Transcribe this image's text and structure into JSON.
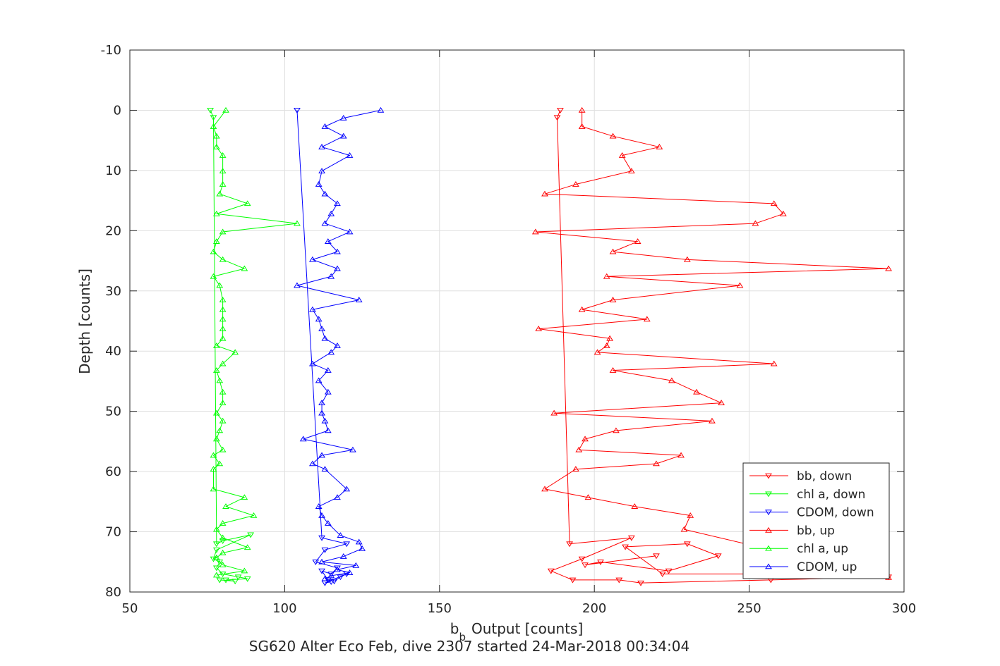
{
  "chart_data": {
    "type": "line",
    "title": "",
    "xlabel": "Output [counts]",
    "xlabel_prefix": "b",
    "xlabel_subscript": "b",
    "ylabel": "Depth [counts]",
    "caption": "SG620 Alter Eco Feb, dive 2307 started 24-Mar-2018 00:34:04",
    "xlim": [
      50,
      300
    ],
    "ylim": [
      -10,
      80
    ],
    "y_reversed": true,
    "grid": true,
    "x_ticks": [
      "50",
      "100",
      "150",
      "200",
      "250",
      "300"
    ],
    "y_ticks": [
      "-10",
      "0",
      "10",
      "20",
      "30",
      "40",
      "50",
      "60",
      "70",
      "80"
    ],
    "legend_position": "bottom-right",
    "series": [
      {
        "name": "bb, down",
        "color": "#ff0000",
        "marker": "triangle-down",
        "points": [
          [
            189,
            0
          ],
          [
            188,
            1.2
          ],
          [
            192,
            72
          ],
          [
            212,
            71
          ],
          [
            196,
            74.5
          ],
          [
            186,
            76.5
          ],
          [
            193,
            78
          ],
          [
            208,
            78
          ],
          [
            215,
            78.5
          ],
          [
            257,
            78
          ],
          [
            295,
            77.5
          ],
          [
            255,
            77
          ],
          [
            222,
            77
          ],
          [
            210,
            72.5
          ],
          [
            230,
            72
          ],
          [
            240,
            74
          ],
          [
            224,
            76.5
          ],
          [
            202,
            75
          ],
          [
            197,
            75.5
          ],
          [
            220,
            74
          ]
        ]
      },
      {
        "name": "chl a, down",
        "color": "#00ff00",
        "marker": "triangle-down",
        "points": [
          [
            76,
            0
          ],
          [
            77,
            1.2
          ],
          [
            78,
            72
          ],
          [
            80,
            71.5
          ],
          [
            89,
            70.5
          ],
          [
            78,
            73
          ],
          [
            77,
            74.5
          ],
          [
            79,
            75
          ],
          [
            78,
            76
          ],
          [
            80,
            77
          ],
          [
            85,
            77.5
          ],
          [
            88,
            77.8
          ],
          [
            81,
            78
          ],
          [
            84,
            78.2
          ],
          [
            79,
            78
          ]
        ]
      },
      {
        "name": "CDOM, down",
        "color": "#0000ff",
        "marker": "triangle-down",
        "points": [
          [
            104,
            0
          ],
          [
            112,
            71
          ],
          [
            120,
            72
          ],
          [
            113,
            73
          ],
          [
            110,
            75
          ],
          [
            117,
            76
          ],
          [
            115,
            77
          ],
          [
            112,
            76.5
          ],
          [
            114,
            78
          ],
          [
            116,
            78.2
          ],
          [
            118,
            77.5
          ],
          [
            120,
            77
          ],
          [
            113,
            78.5
          ],
          [
            115,
            78.3
          ]
        ]
      },
      {
        "name": "bb, up",
        "color": "#ff0000",
        "marker": "triangle-up",
        "points": [
          [
            196,
            0
          ],
          [
            196,
            2.7
          ],
          [
            206,
            4.3
          ],
          [
            221,
            6.1
          ],
          [
            209,
            7.5
          ],
          [
            212,
            10.1
          ],
          [
            194,
            12.3
          ],
          [
            184,
            13.9
          ],
          [
            258,
            15.5
          ],
          [
            261,
            17.2
          ],
          [
            252,
            18.8
          ],
          [
            181,
            20.2
          ],
          [
            214,
            21.8
          ],
          [
            206,
            23.5
          ],
          [
            230,
            24.8
          ],
          [
            295,
            26.3
          ],
          [
            204,
            27.6
          ],
          [
            247,
            29.1
          ],
          [
            206,
            31.5
          ],
          [
            196,
            33.1
          ],
          [
            217,
            34.7
          ],
          [
            182,
            36.3
          ],
          [
            205,
            37.9
          ],
          [
            204,
            39.1
          ],
          [
            201,
            40.2
          ],
          [
            258,
            42.1
          ],
          [
            206,
            43.2
          ],
          [
            225,
            44.9
          ],
          [
            233,
            46.8
          ],
          [
            241,
            48.6
          ],
          [
            187,
            50.3
          ],
          [
            238,
            51.6
          ],
          [
            207,
            53.2
          ],
          [
            197,
            54.6
          ],
          [
            195,
            56.4
          ],
          [
            228,
            57.3
          ],
          [
            220,
            58.7
          ],
          [
            194,
            59.6
          ],
          [
            184,
            62.9
          ],
          [
            198,
            64.3
          ],
          [
            213,
            65.8
          ],
          [
            231,
            67.3
          ],
          [
            229,
            69.6
          ],
          [
            295,
            77.6
          ]
        ]
      },
      {
        "name": "chl a, up",
        "color": "#00ff00",
        "marker": "triangle-up",
        "points": [
          [
            81,
            0
          ],
          [
            77,
            2.7
          ],
          [
            78,
            4.3
          ],
          [
            78,
            6.1
          ],
          [
            80,
            7.5
          ],
          [
            80,
            10.1
          ],
          [
            80,
            12.3
          ],
          [
            79,
            13.9
          ],
          [
            88,
            15.5
          ],
          [
            78,
            17.2
          ],
          [
            104,
            18.8
          ],
          [
            80,
            20.2
          ],
          [
            78,
            21.8
          ],
          [
            77,
            23.5
          ],
          [
            80,
            24.8
          ],
          [
            87,
            26.3
          ],
          [
            77,
            27.6
          ],
          [
            79,
            29.1
          ],
          [
            80,
            31.5
          ],
          [
            80,
            33.1
          ],
          [
            80,
            34.7
          ],
          [
            80,
            36.3
          ],
          [
            80,
            37.9
          ],
          [
            78,
            39.1
          ],
          [
            84,
            40.2
          ],
          [
            80,
            42.1
          ],
          [
            78,
            43.2
          ],
          [
            79,
            44.9
          ],
          [
            80,
            46.8
          ],
          [
            80,
            48.6
          ],
          [
            78,
            50.3
          ],
          [
            80,
            51.6
          ],
          [
            79,
            53.2
          ],
          [
            78,
            54.6
          ],
          [
            80,
            56.4
          ],
          [
            77,
            57.3
          ],
          [
            79,
            58.7
          ],
          [
            77,
            59.6
          ],
          [
            77,
            62.9
          ],
          [
            87,
            64.3
          ],
          [
            81,
            65.8
          ],
          [
            90,
            67.3
          ],
          [
            80,
            68.6
          ],
          [
            78,
            69.6
          ],
          [
            80,
            71
          ],
          [
            88,
            72.6
          ],
          [
            80,
            73.5
          ],
          [
            78,
            74.3
          ],
          [
            80,
            75.5
          ],
          [
            87,
            76.5
          ],
          [
            78,
            77.2
          ]
        ]
      },
      {
        "name": "CDOM, up",
        "color": "#0000ff",
        "marker": "triangle-up",
        "points": [
          [
            131,
            0
          ],
          [
            119,
            1.3
          ],
          [
            113,
            2.7
          ],
          [
            119,
            4.3
          ],
          [
            112,
            6.1
          ],
          [
            121,
            7.5
          ],
          [
            112,
            10.1
          ],
          [
            111,
            12.3
          ],
          [
            113,
            13.9
          ],
          [
            117,
            15.5
          ],
          [
            115,
            17.2
          ],
          [
            113,
            18.8
          ],
          [
            121,
            20.2
          ],
          [
            114,
            21.8
          ],
          [
            117,
            23.5
          ],
          [
            109,
            24.8
          ],
          [
            117,
            26.3
          ],
          [
            115,
            27.6
          ],
          [
            104,
            29.1
          ],
          [
            124,
            31.5
          ],
          [
            109,
            33.1
          ],
          [
            111,
            34.7
          ],
          [
            112,
            36.3
          ],
          [
            113,
            37.9
          ],
          [
            117,
            39.1
          ],
          [
            115,
            40.2
          ],
          [
            109,
            42.1
          ],
          [
            114,
            43.2
          ],
          [
            111,
            44.9
          ],
          [
            114,
            46.8
          ],
          [
            112,
            48.6
          ],
          [
            112,
            50.3
          ],
          [
            113,
            51.6
          ],
          [
            114,
            53.2
          ],
          [
            106,
            54.6
          ],
          [
            122,
            56.4
          ],
          [
            112,
            57.3
          ],
          [
            109,
            58.7
          ],
          [
            113,
            59.6
          ],
          [
            120,
            62.9
          ],
          [
            117,
            64.3
          ],
          [
            111,
            65.8
          ],
          [
            112,
            67.3
          ],
          [
            114,
            68.6
          ],
          [
            118,
            70.6
          ],
          [
            124,
            71.7
          ],
          [
            125,
            72.8
          ],
          [
            119,
            74.1
          ],
          [
            112,
            75
          ],
          [
            123,
            75.6
          ],
          [
            117,
            76.3
          ],
          [
            121,
            76.8
          ],
          [
            115,
            77.3
          ],
          [
            113,
            77.8
          ]
        ]
      }
    ]
  }
}
